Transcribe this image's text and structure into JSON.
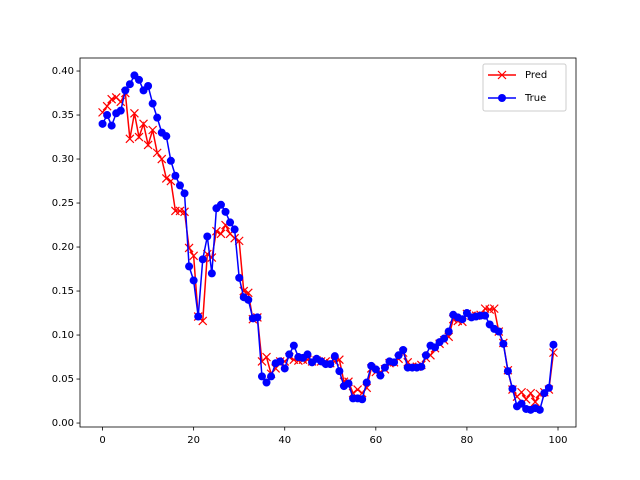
{
  "chart_data": {
    "type": "line",
    "x": [
      0,
      1,
      2,
      3,
      4,
      5,
      6,
      7,
      8,
      9,
      10,
      11,
      12,
      13,
      14,
      15,
      16,
      17,
      18,
      19,
      20,
      21,
      22,
      23,
      24,
      25,
      26,
      27,
      28,
      29,
      30,
      31,
      32,
      33,
      34,
      35,
      36,
      37,
      38,
      39,
      40,
      41,
      42,
      43,
      44,
      45,
      46,
      47,
      48,
      49,
      50,
      51,
      52,
      53,
      54,
      55,
      56,
      57,
      58,
      59,
      60,
      61,
      62,
      63,
      64,
      65,
      66,
      67,
      68,
      69,
      70,
      71,
      72,
      73,
      74,
      75,
      76,
      77,
      78,
      79,
      80,
      81,
      82,
      83,
      84,
      85,
      86,
      87,
      88,
      89,
      90,
      91,
      92,
      93,
      94,
      95,
      96,
      97,
      98,
      99
    ],
    "series": [
      {
        "name": "Pred",
        "color": "#ff0000",
        "marker": "x",
        "values": [
          0.353,
          0.36,
          0.368,
          0.37,
          0.365,
          0.375,
          0.323,
          0.352,
          0.325,
          0.34,
          0.316,
          0.333,
          0.307,
          0.3,
          0.278,
          0.275,
          0.241,
          0.241,
          0.24,
          0.199,
          0.19,
          0.121,
          0.116,
          0.192,
          0.188,
          0.218,
          0.215,
          0.225,
          0.215,
          0.21,
          0.207,
          0.15,
          0.148,
          0.118,
          0.12,
          0.07,
          0.075,
          0.056,
          0.062,
          0.07,
          0.07,
          0.075,
          0.072,
          0.071,
          0.072,
          0.072,
          0.07,
          0.071,
          0.07,
          0.07,
          0.068,
          0.07,
          0.072,
          0.047,
          0.047,
          0.034,
          0.038,
          0.034,
          0.04,
          0.062,
          0.058,
          0.058,
          0.061,
          0.068,
          0.069,
          0.073,
          0.08,
          0.069,
          0.064,
          0.064,
          0.066,
          0.074,
          0.077,
          0.085,
          0.09,
          0.094,
          0.098,
          0.118,
          0.116,
          0.115,
          0.124,
          0.122,
          0.122,
          0.123,
          0.13,
          0.129,
          0.13,
          0.104,
          0.091,
          0.06,
          0.038,
          0.03,
          0.035,
          0.027,
          0.034,
          0.024,
          0.033,
          0.035,
          0.038,
          0.08
        ]
      },
      {
        "name": "True",
        "color": "#0000ff",
        "marker": "o",
        "values": [
          0.34,
          0.35,
          0.338,
          0.352,
          0.355,
          0.378,
          0.385,
          0.395,
          0.39,
          0.378,
          0.383,
          0.363,
          0.347,
          0.33,
          0.326,
          0.298,
          0.281,
          0.27,
          0.261,
          0.178,
          0.162,
          0.121,
          0.186,
          0.212,
          0.17,
          0.244,
          0.248,
          0.24,
          0.228,
          0.22,
          0.165,
          0.143,
          0.14,
          0.119,
          0.12,
          0.053,
          0.046,
          0.053,
          0.068,
          0.07,
          0.062,
          0.078,
          0.088,
          0.075,
          0.074,
          0.078,
          0.069,
          0.073,
          0.07,
          0.067,
          0.067,
          0.076,
          0.059,
          0.042,
          0.045,
          0.028,
          0.028,
          0.027,
          0.046,
          0.065,
          0.061,
          0.054,
          0.063,
          0.07,
          0.069,
          0.077,
          0.083,
          0.063,
          0.063,
          0.063,
          0.064,
          0.077,
          0.088,
          0.086,
          0.092,
          0.096,
          0.104,
          0.123,
          0.12,
          0.118,
          0.125,
          0.12,
          0.121,
          0.122,
          0.122,
          0.112,
          0.107,
          0.104,
          0.09,
          0.059,
          0.039,
          0.019,
          0.022,
          0.016,
          0.015,
          0.017,
          0.015,
          0.034,
          0.04,
          0.089
        ]
      }
    ],
    "xlim": [
      -4.95,
      103.95
    ],
    "xticks": [
      0,
      20,
      40,
      60,
      80,
      100
    ],
    "ylim": [
      -0.0045,
      0.4148
    ],
    "yticks": [
      {
        "value": 0,
        "label": "0.00"
      },
      {
        "value": 0.05,
        "label": "0.05"
      },
      {
        "value": 0.1,
        "label": "0.10"
      },
      {
        "value": 0.15,
        "label": "0.15"
      },
      {
        "value": 0.2,
        "label": "0.20"
      },
      {
        "value": 0.25,
        "label": "0.25"
      },
      {
        "value": 0.3,
        "label": "0.30"
      },
      {
        "value": 0.35,
        "label": "0.35"
      },
      {
        "value": 0.4,
        "label": "0.40"
      }
    ],
    "grid": false,
    "legend": "upper right"
  }
}
